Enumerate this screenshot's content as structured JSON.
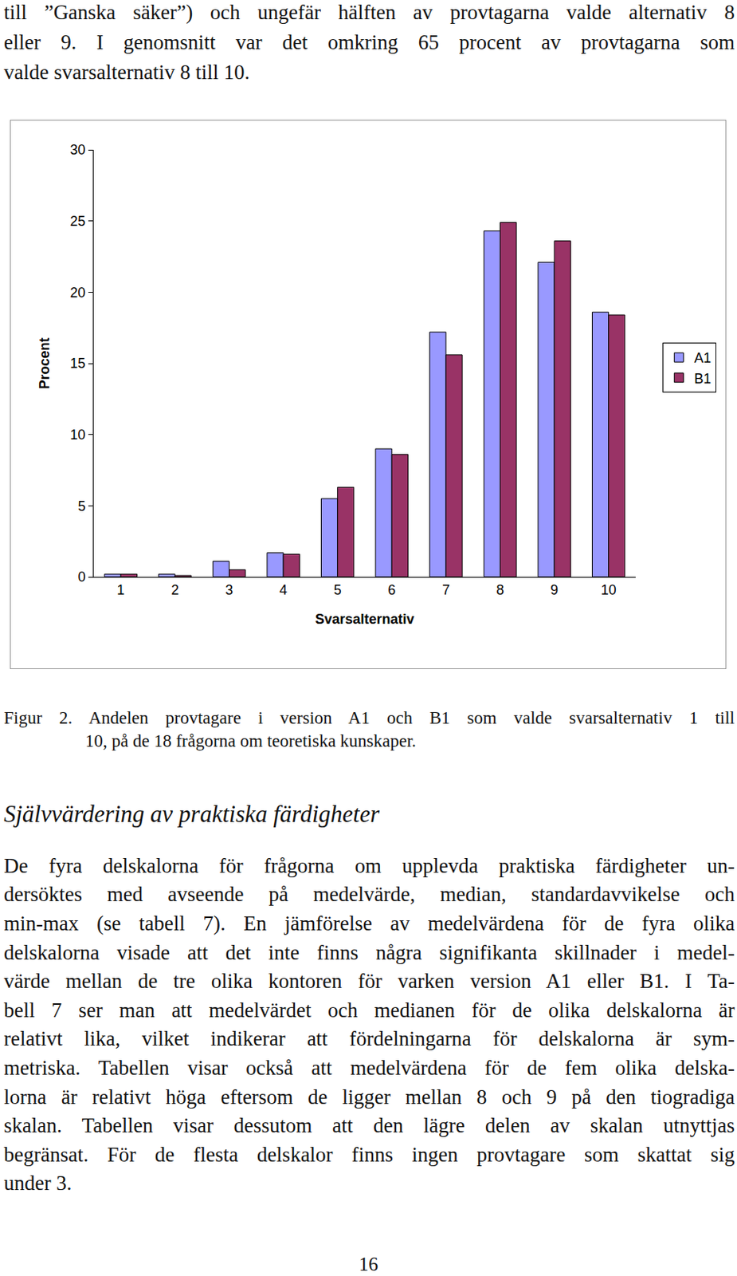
{
  "top_text": [
    "till ”Ganska säker”) och ungefär hälften av provtagarna valde alternativ 8",
    "eller 9. I genomsnitt var det omkring 65 procent av provtagarna som",
    "valde svarsalternativ 8 till 10."
  ],
  "chart_data": {
    "type": "bar",
    "x_label": "Svarsalternativ",
    "y_label": "Procent",
    "categories": [
      "1",
      "2",
      "3",
      "4",
      "5",
      "6",
      "7",
      "8",
      "9",
      "10"
    ],
    "series": [
      {
        "name": "A1",
        "color": "#9999ff",
        "values": [
          0.2,
          0.2,
          1.1,
          1.7,
          5.5,
          9.0,
          17.2,
          24.3,
          22.1,
          18.6
        ]
      },
      {
        "name": "B1",
        "color": "#993366",
        "values": [
          0.2,
          0.1,
          0.5,
          1.6,
          6.3,
          8.6,
          15.6,
          24.9,
          23.6,
          18.4
        ]
      }
    ],
    "ylim": [
      0,
      30
    ],
    "yticks": [
      0,
      5,
      10,
      15,
      20,
      25,
      30
    ],
    "grid": false,
    "legend": "right"
  },
  "caption": [
    "Figur 2. Andelen provtagare i version A1 och B1 som valde svarsalternativ 1 till",
    "10, på de 18 frågorna om teoretiska kunskaper."
  ],
  "heading": "Självvärdering av praktiska färdigheter",
  "body": [
    "De fyra delskalorna för frågorna om upplevda praktiska färdigheter un-",
    "dersöktes med avseende på medelvärde, median, standardavvikelse och",
    "min-max (se tabell 7). En jämförelse av medelvärdena för de fyra olika",
    "delskalorna visade att det inte finns några signifikanta skillnader i medel-",
    "värde mellan de tre olika kontoren för varken version A1 eller B1. I Ta-",
    "bell 7 ser man att medelvärdet och medianen för de olika delskalorna är",
    "relativt lika, vilket indikerar att fördelningarna för delskalorna är sym-",
    "metriska. Tabellen visar också att medelvärdena för de fem olika delska-",
    "lorna är relativt höga eftersom de ligger mellan 8 och 9 på den tiogradiga",
    "skalan. Tabellen visar dessutom att den lägre delen av skalan utnyttjas",
    "begränsat. För de flesta delskalor finns ingen provtagare som skattat sig",
    "under 3."
  ],
  "page_number": "16"
}
